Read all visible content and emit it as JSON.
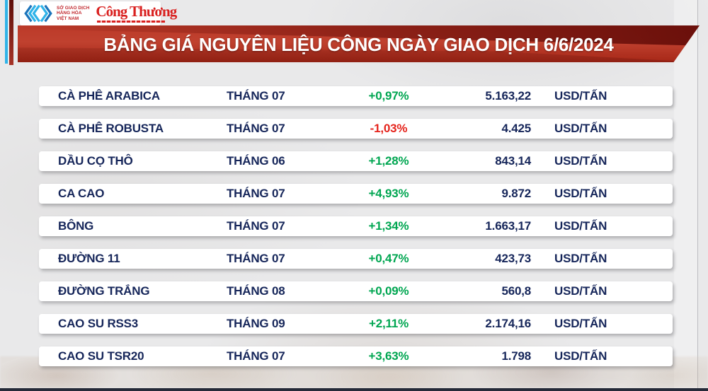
{
  "brand": {
    "exchange_name_lines": [
      "SỞ GIAO DỊCH",
      "HÀNG HÓA",
      "VIỆT NAM"
    ],
    "newspaper_name": "Công Thương"
  },
  "banner": {
    "title": "BẢNG GIÁ NGUYÊN LIỆU CÔNG NGÀY GIAO DỊCH 6/6/2024"
  },
  "table": {
    "rows": [
      {
        "commodity": "CÀ PHÊ ARABICA",
        "contract_month": "THÁNG 07",
        "change_percent": "+0,97%",
        "price": "5.163,22",
        "unit": "USD/TẤN"
      },
      {
        "commodity": "CÀ PHÊ ROBUSTA",
        "contract_month": "THÁNG 07",
        "change_percent": "-1,03%",
        "price": "4.425",
        "unit": "USD/TẤN"
      },
      {
        "commodity": "DẦU CỌ THÔ",
        "contract_month": "THÁNG 06",
        "change_percent": "+1,28%",
        "price": "843,14",
        "unit": "USD/TẤN"
      },
      {
        "commodity": "CA CAO",
        "contract_month": "THÁNG 07",
        "change_percent": "+4,93%",
        "price": "9.872",
        "unit": "USD/TẤN"
      },
      {
        "commodity": "BÔNG",
        "contract_month": "THÁNG 07",
        "change_percent": "+1,34%",
        "price": "1.663,17",
        "unit": "USD/TẤN"
      },
      {
        "commodity": "ĐƯỜNG 11",
        "contract_month": "THÁNG 07",
        "change_percent": "+0,47%",
        "price": "423,73",
        "unit": "USD/TẤN"
      },
      {
        "commodity": "ĐƯỜNG TRẮNG",
        "contract_month": "THÁNG 08",
        "change_percent": "+0,09%",
        "price": "560,8",
        "unit": "USD/TẤN"
      },
      {
        "commodity": "CAO SU RSS3",
        "contract_month": "THÁNG 09",
        "change_percent": "+2,11%",
        "price": "2.174,16",
        "unit": "USD/TẤN"
      },
      {
        "commodity": "CAO SU TSR20",
        "contract_month": "THÁNG 07",
        "change_percent": "+3,63%",
        "price": "1.798",
        "unit": "USD/TẤN"
      }
    ]
  },
  "colors": {
    "positive_green": "#00a651",
    "negative_red": "#e5231b",
    "text_navy": "#16265a",
    "banner_red": "#b23120",
    "logo_cyan": "#2fb3e8",
    "logo_red": "#c1272d",
    "masthead_red": "#d9201f"
  },
  "chart_data": {
    "type": "table",
    "title": "BẢNG GIÁ NGUYÊN LIỆU CÔNG NGÀY GIAO DỊCH 6/6/2024",
    "columns": [
      "commodity",
      "contract_month",
      "change_percent",
      "price",
      "unit"
    ],
    "rows": [
      [
        "CÀ PHÊ ARABICA",
        "THÁNG 07",
        "+0,97%",
        "5.163,22",
        "USD/TẤN"
      ],
      [
        "CÀ PHÊ ROBUSTA",
        "THÁNG 07",
        "-1,03%",
        "4.425",
        "USD/TẤN"
      ],
      [
        "DẦU CỌ THÔ",
        "THÁNG 06",
        "+1,28%",
        "843,14",
        "USD/TẤN"
      ],
      [
        "CA CAO",
        "THÁNG 07",
        "+4,93%",
        "9.872",
        "USD/TẤN"
      ],
      [
        "BÔNG",
        "THÁNG 07",
        "+1,34%",
        "1.663,17",
        "USD/TẤN"
      ],
      [
        "ĐƯỜNG 11",
        "THÁNG 07",
        "+0,47%",
        "423,73",
        "USD/TẤN"
      ],
      [
        "ĐƯỜNG TRẮNG",
        "THÁNG 08",
        "+0,09%",
        "560,8",
        "USD/TẤN"
      ],
      [
        "CAO SU RSS3",
        "THÁNG 09",
        "+2,11%",
        "2.174,16",
        "USD/TẤN"
      ],
      [
        "CAO SU TSR20",
        "THÁNG 07",
        "+3,63%",
        "1.798",
        "USD/TẤN"
      ]
    ]
  }
}
